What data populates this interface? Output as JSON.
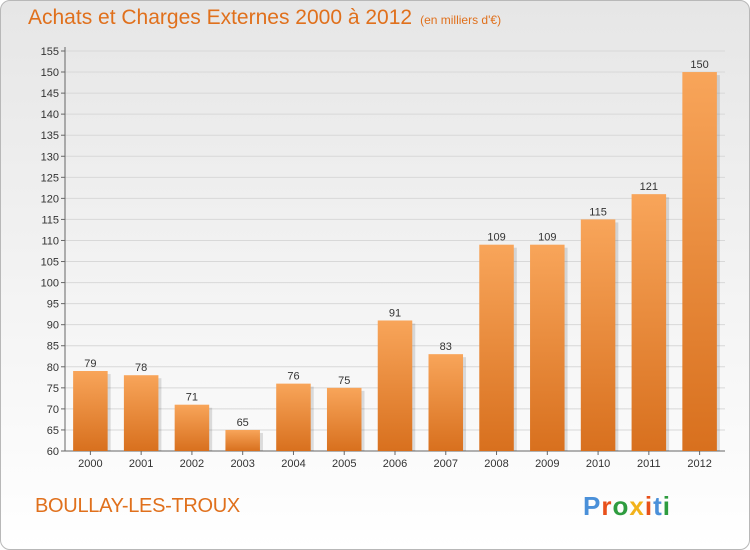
{
  "header": {
    "title": "Achats et Charges Externes 2000 à 2012",
    "unit": "(en milliers d'€)"
  },
  "footer": {
    "commune": "BOULLAY-LES-TROUX",
    "logo": "Proxiti",
    "logo_colors": [
      "#4a90d9",
      "#e8501a",
      "#2e9c3f",
      "#f2b21b",
      "#e8501a",
      "#4a90d9",
      "#2e9c3f"
    ]
  },
  "colors": {
    "bar_light": "#f8a55a",
    "bar_dark": "#d8701e",
    "accent": "#e0701c",
    "grid": "#d8d8d8"
  },
  "chart_data": {
    "type": "bar",
    "title": "Achats et Charges Externes 2000 à 2012",
    "subtitle": "(en milliers d'€)",
    "categories": [
      "2000",
      "2001",
      "2002",
      "2003",
      "2004",
      "2005",
      "2006",
      "2007",
      "2008",
      "2009",
      "2010",
      "2011",
      "2012"
    ],
    "values": [
      79,
      78,
      71,
      65,
      76,
      75,
      91,
      83,
      109,
      109,
      115,
      121,
      150
    ],
    "ylim": [
      60,
      155
    ],
    "yticks": [
      60,
      65,
      70,
      75,
      80,
      85,
      90,
      95,
      100,
      105,
      110,
      115,
      120,
      125,
      130,
      135,
      140,
      145,
      150,
      155
    ],
    "grid": true,
    "xlabel": "",
    "ylabel": ""
  }
}
